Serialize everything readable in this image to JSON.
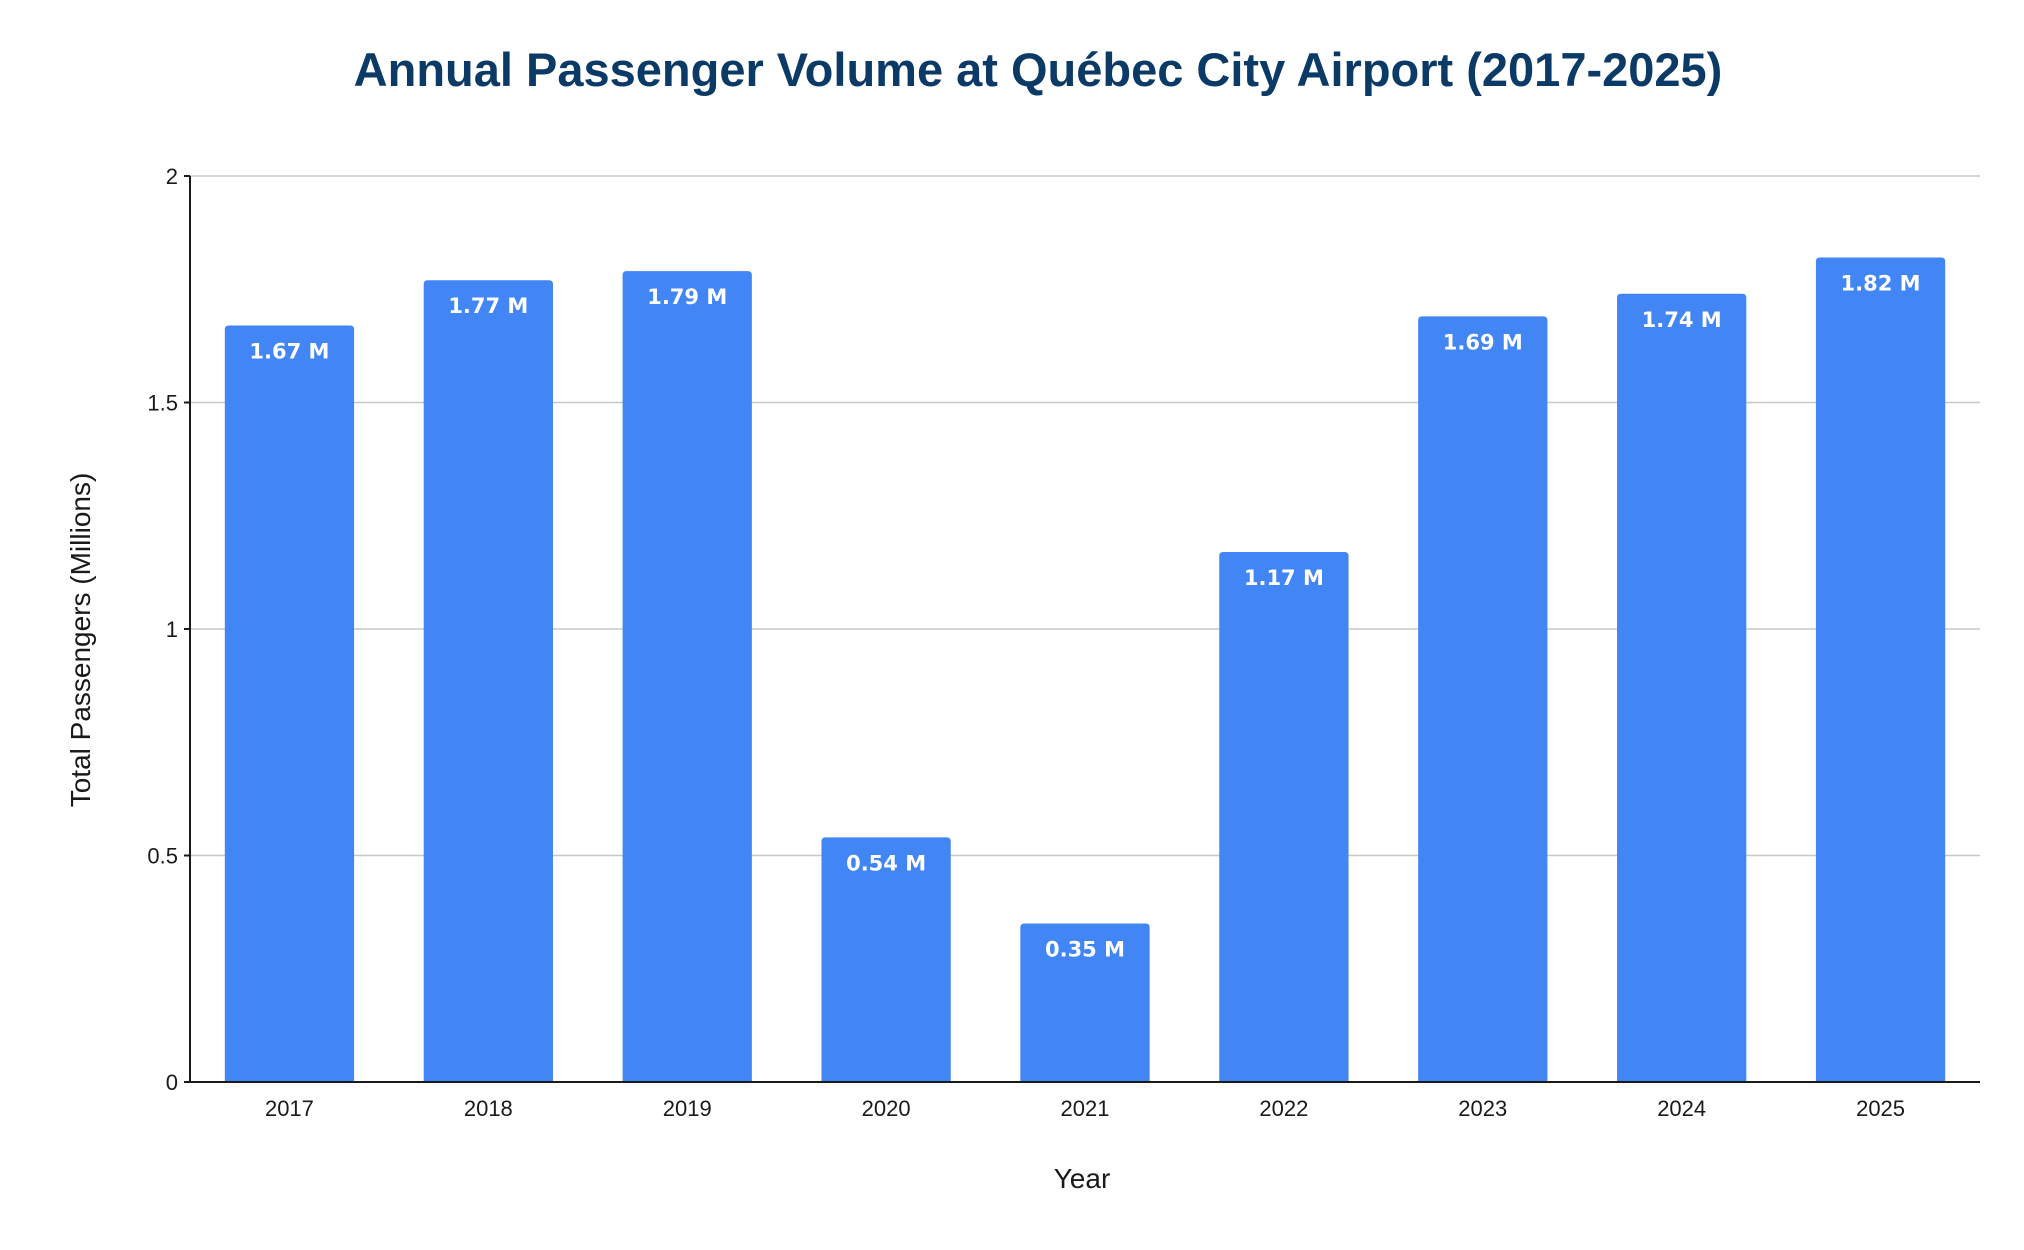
{
  "chart_data": {
    "type": "bar",
    "title": "Annual Passenger Volume at Québec City Airport (2017-2025)",
    "xlabel": "Year",
    "ylabel": "Total Passengers (Millions)",
    "categories": [
      "2017",
      "2018",
      "2019",
      "2020",
      "2021",
      "2022",
      "2023",
      "2024",
      "2025"
    ],
    "values": [
      1.67,
      1.77,
      1.79,
      0.54,
      0.35,
      1.17,
      1.69,
      1.74,
      1.82
    ],
    "data_labels": [
      "1.67 M",
      "1.77 M",
      "1.79 M",
      "0.54 M",
      "0.35 M",
      "1.17 M",
      "1.69 M",
      "1.74 M",
      "1.82 M"
    ],
    "ylim": [
      0,
      2
    ],
    "yticks": [
      0,
      0.5,
      1,
      1.5,
      2
    ],
    "ytick_labels": [
      "0",
      "0.5",
      "1",
      "1.5",
      "2"
    ],
    "grid": true,
    "legend": "none",
    "bar_color": "#4285f4"
  }
}
